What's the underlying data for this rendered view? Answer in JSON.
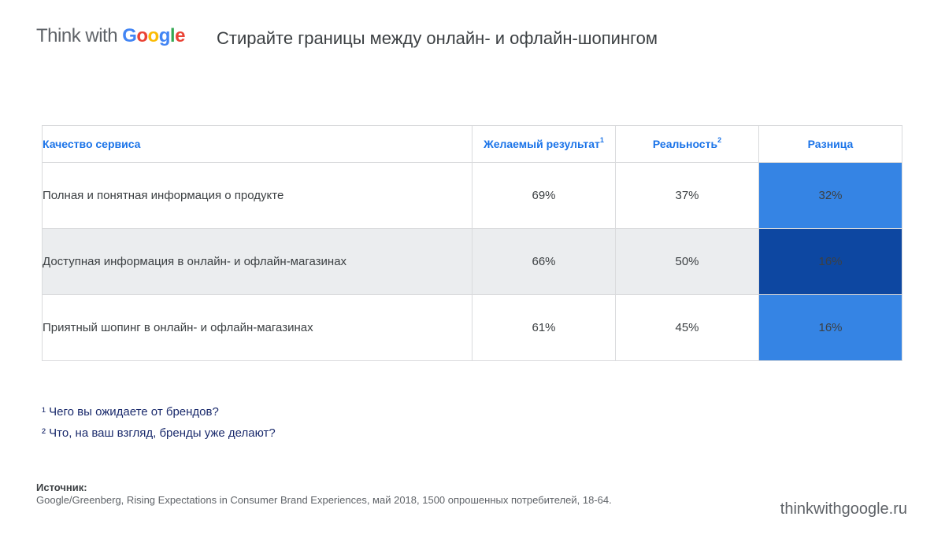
{
  "header": {
    "logo_prefix": "Think with ",
    "logo_letters": [
      "G",
      "o",
      "o",
      "g",
      "l",
      "e"
    ],
    "title": "Стирайте границы между онлайн- и офлайн-шопингом"
  },
  "table": {
    "columns": {
      "quality": "Качество сервиса",
      "desired": "Желаемый результат",
      "desired_sup": "1",
      "reality": "Реальность",
      "reality_sup": "2",
      "difference": "Разница"
    },
    "rows": [
      {
        "label": "Полная и понятная информация о продукте",
        "desired": "69%",
        "reality": "37%",
        "difference": "32%"
      },
      {
        "label": "Доступная информация в онлайн- и офлайн-магазинах",
        "desired": "66%",
        "reality": "50%",
        "difference": "16%"
      },
      {
        "label": "Приятный шопинг в онлайн- и офлайн-магазинах",
        "desired": "61%",
        "reality": "45%",
        "difference": "16%"
      }
    ]
  },
  "footnotes": [
    "¹ Чего вы ожидаете от брендов?",
    "² Что, на ваш взгляд, бренды уже делают?"
  ],
  "source": {
    "label": "Источник:",
    "text": "Google/Greenberg, Rising Expectations in Consumer Brand Experiences, май 2018, 1500 опрошенных потребителей, 18-64."
  },
  "site": "thinkwithgoogle.ru",
  "colors": {
    "accent_blue": "#1a73e8",
    "difference_light": "#3584e4",
    "difference_dark": "#0d47a1",
    "row_alt": "#ebedef"
  }
}
